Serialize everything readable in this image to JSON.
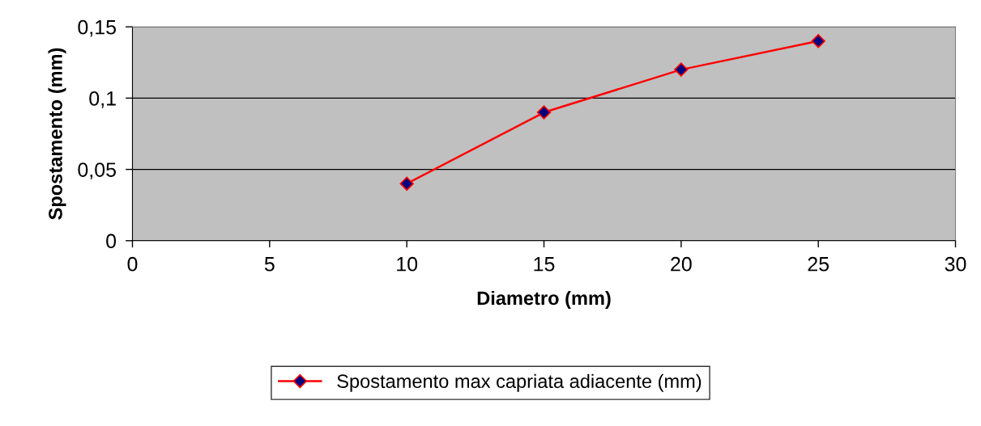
{
  "chart_data": {
    "type": "line",
    "xlabel": "Diametro (mm)",
    "ylabel": "Spostamento (mm)",
    "x": [
      10,
      15,
      20,
      25
    ],
    "series": [
      {
        "name": "Spostamento max capriata adiacente (mm)",
        "color": "#ff0000",
        "values": [
          0.04,
          0.09,
          0.12,
          0.14
        ]
      }
    ],
    "xlim": [
      0,
      30
    ],
    "ylim": [
      0,
      0.15
    ],
    "xticks": [
      0,
      5,
      10,
      15,
      20,
      25,
      30
    ],
    "yticks": [
      0,
      {
        "value": 0.05,
        "label": "0,05"
      },
      {
        "value": 0.1,
        "label": "0,1"
      },
      {
        "value": 0.15,
        "label": "0,15"
      }
    ],
    "grid": "y",
    "legend": "bottom",
    "marker": "diamond",
    "line_style": "solid"
  }
}
